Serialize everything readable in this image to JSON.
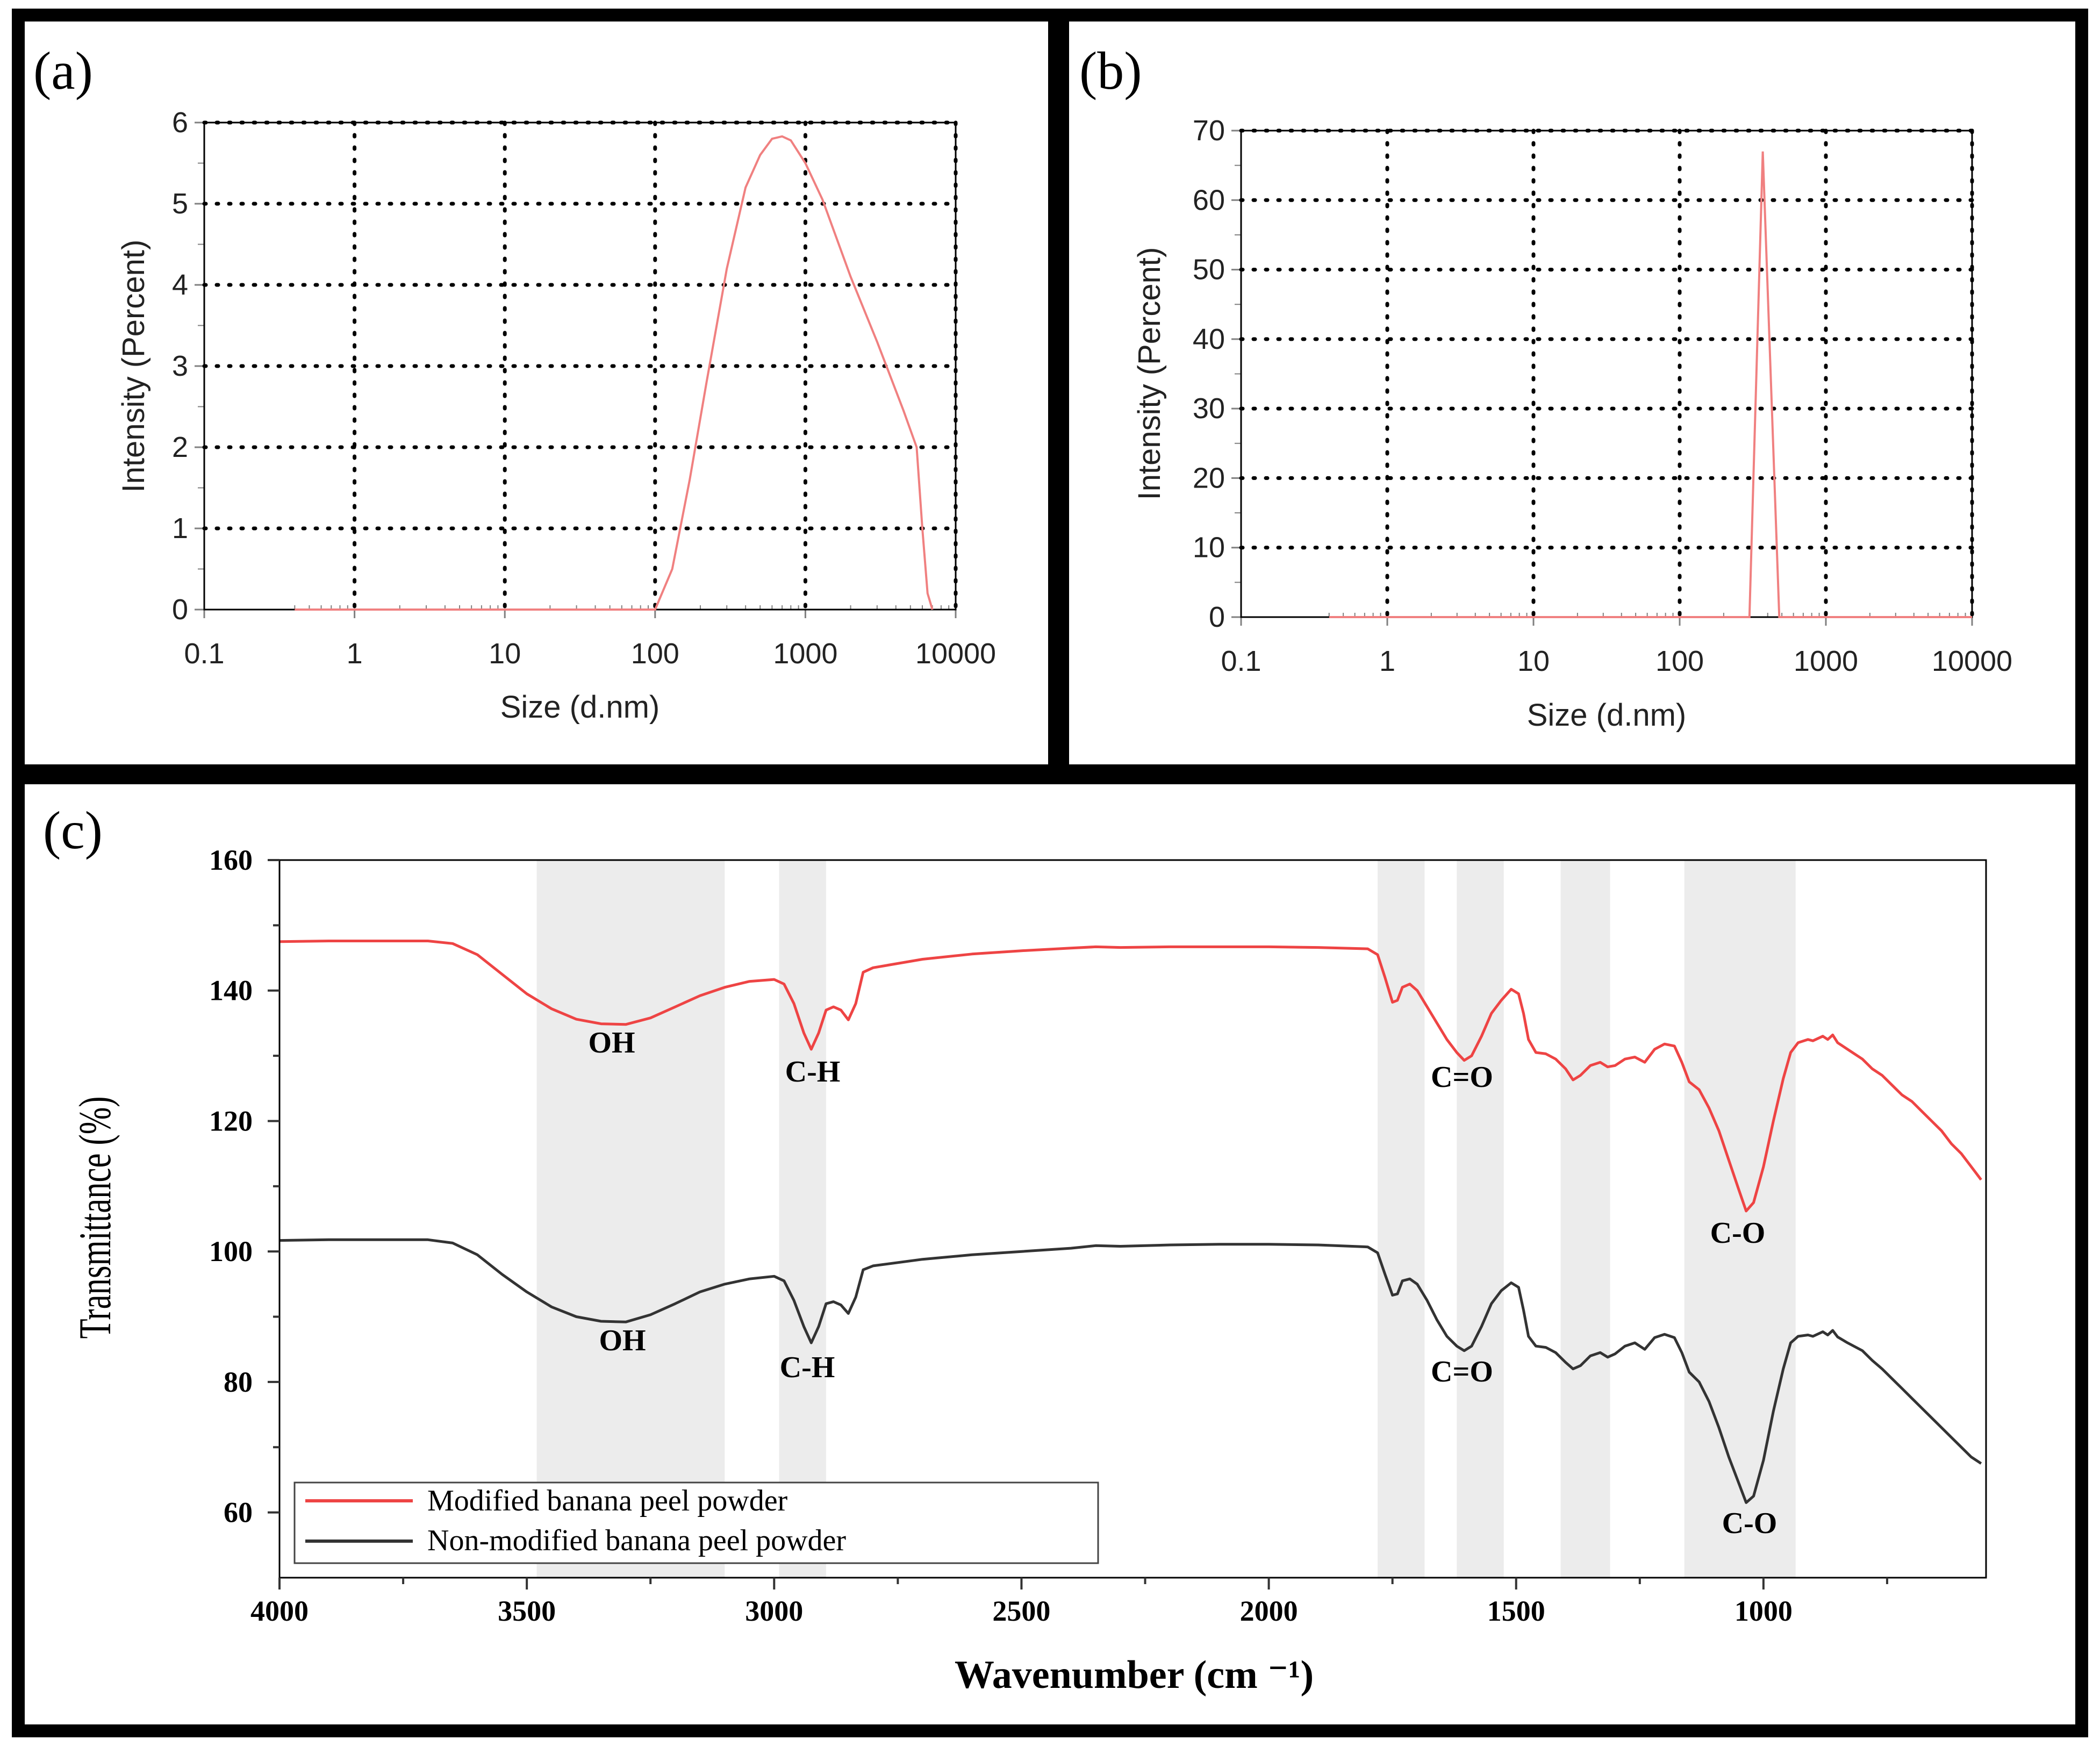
{
  "colors": {
    "modified": "#ee4444",
    "non_modified": "#333333",
    "dls_line": "#f08080",
    "band_shade": "#ececec"
  },
  "chart_data": [
    {
      "panel": "(a)",
      "type": "line",
      "title": "",
      "xlabel": "Size (d.nm)",
      "ylabel": "Intensity (Percent)",
      "xscale": "log",
      "xlim": [
        0.1,
        10000
      ],
      "ylim": [
        0,
        6
      ],
      "xticks": [
        0.1,
        1,
        10,
        100,
        1000,
        10000
      ],
      "xtick_labels": [
        "0.1",
        "1",
        "10",
        "100",
        "1000",
        "10000"
      ],
      "yticks": [
        0,
        1,
        2,
        3,
        4,
        5,
        6
      ],
      "ytick_labels": [
        "0",
        "1",
        "2",
        "3",
        "4",
        "5",
        "6"
      ],
      "grid": true,
      "series": [
        {
          "name": "Intensity",
          "color": "#f08080",
          "x": [
            0.4,
            100,
            130,
            170,
            220,
            300,
            400,
            500,
            600,
            700,
            800,
            1000,
            1300,
            2000,
            3000,
            4500,
            5500,
            6000,
            6500,
            7000
          ],
          "y": [
            0,
            0,
            0.5,
            1.6,
            2.8,
            4.2,
            5.2,
            5.6,
            5.8,
            5.83,
            5.78,
            5.5,
            5.05,
            4.1,
            3.3,
            2.45,
            2.0,
            1.0,
            0.2,
            0
          ]
        }
      ]
    },
    {
      "panel": "(b)",
      "type": "line",
      "title": "",
      "xlabel": "Size (d.nm)",
      "ylabel": "Intensity (Percent)",
      "xscale": "log",
      "xlim": [
        0.1,
        10000
      ],
      "ylim": [
        0,
        70
      ],
      "xticks": [
        0.1,
        1,
        10,
        100,
        1000,
        10000
      ],
      "xtick_labels": [
        "0.1",
        "1",
        "10",
        "100",
        "1000",
        "10000"
      ],
      "yticks": [
        0,
        10,
        20,
        30,
        40,
        50,
        60,
        70
      ],
      "ytick_labels": [
        "0",
        "10",
        "20",
        "30",
        "40",
        "50",
        "60",
        "70"
      ],
      "grid": true,
      "series": [
        {
          "name": "Intensity",
          "color": "#f08080",
          "x": [
            0.4,
            300,
            340,
            370,
            480,
            10000
          ],
          "y": [
            0,
            0,
            40,
            67,
            0,
            0
          ]
        }
      ]
    },
    {
      "panel": "(c)",
      "type": "line",
      "title": "",
      "xlabel": "Wavenumber (cm ⁻¹)",
      "ylabel": "Transmittance (%)",
      "xlim": [
        4000,
        550
      ],
      "ylim": [
        50,
        160
      ],
      "xticks": [
        4000,
        3500,
        3000,
        2500,
        2000,
        1500,
        1000
      ],
      "xtick_labels": [
        "4000",
        "3500",
        "3000",
        "2500",
        "2000",
        "1500",
        "1000"
      ],
      "yticks": [
        60,
        80,
        100,
        120,
        140,
        160
      ],
      "ytick_labels": [
        "60",
        "80",
        "100",
        "120",
        "140",
        "160"
      ],
      "grid": false,
      "legend": {
        "position": "bottom-left",
        "entries": [
          "Modified banana peel powder",
          "Non-modified banana peel powder"
        ]
      },
      "shaded_bands": [
        [
          3480,
          3100
        ],
        [
          2990,
          2895
        ],
        [
          1780,
          1685
        ],
        [
          1620,
          1525
        ],
        [
          1410,
          1310
        ],
        [
          1160,
          935
        ]
      ],
      "series": [
        {
          "name": "Modified banana peel powder",
          "color": "#ee4444",
          "x": [
            4000,
            3900,
            3800,
            3700,
            3650,
            3600,
            3550,
            3500,
            3450,
            3400,
            3350,
            3300,
            3250,
            3200,
            3150,
            3100,
            3050,
            3000,
            2980,
            2960,
            2940,
            2925,
            2910,
            2895,
            2880,
            2865,
            2850,
            2835,
            2820,
            2800,
            2700,
            2600,
            2500,
            2400,
            2350,
            2300,
            2200,
            2100,
            2000,
            1900,
            1800,
            1780,
            1765,
            1750,
            1740,
            1730,
            1715,
            1700,
            1680,
            1660,
            1640,
            1620,
            1605,
            1590,
            1570,
            1550,
            1530,
            1510,
            1495,
            1485,
            1475,
            1460,
            1440,
            1420,
            1400,
            1385,
            1370,
            1350,
            1330,
            1315,
            1300,
            1280,
            1260,
            1240,
            1220,
            1200,
            1180,
            1165,
            1150,
            1130,
            1110,
            1090,
            1070,
            1050,
            1035,
            1020,
            1000,
            980,
            960,
            945,
            930,
            910,
            900,
            880,
            870,
            860,
            850,
            830,
            800,
            780,
            760,
            740,
            720,
            700,
            680,
            660,
            640,
            620,
            600,
            580,
            560
          ],
          "y": [
            147.5,
            147.6,
            147.6,
            147.6,
            147.2,
            145.5,
            142.5,
            139.5,
            137.2,
            135.6,
            134.9,
            134.8,
            135.8,
            137.5,
            139.2,
            140.5,
            141.4,
            141.7,
            141.0,
            138.0,
            133.5,
            131.0,
            133.5,
            137.0,
            137.5,
            137.0,
            135.5,
            138.0,
            142.8,
            143.5,
            144.8,
            145.6,
            146.1,
            146.5,
            146.7,
            146.6,
            146.7,
            146.7,
            146.7,
            146.6,
            146.4,
            145.5,
            142.0,
            138.2,
            138.5,
            140.5,
            141.0,
            140.0,
            137.5,
            135.0,
            132.5,
            130.5,
            129.3,
            130.0,
            133.0,
            136.5,
            138.5,
            140.2,
            139.5,
            136.5,
            132.5,
            130.5,
            130.3,
            129.5,
            128.0,
            126.3,
            127.0,
            128.5,
            129.0,
            128.3,
            128.5,
            129.5,
            129.8,
            129.0,
            131.0,
            131.8,
            131.5,
            129.0,
            126.0,
            124.8,
            122.0,
            118.5,
            114.0,
            109.5,
            106.2,
            107.5,
            113.0,
            120.0,
            126.5,
            130.5,
            132.0,
            132.5,
            132.3,
            133.0,
            132.5,
            133.2,
            132.0,
            131.0,
            129.5,
            128.0,
            127.0,
            125.5,
            124.0,
            123.0,
            121.5,
            120.0,
            118.5,
            116.5,
            115.0,
            113.0,
            111.0
          ]
        },
        {
          "name": "Non-modified banana peel powder",
          "color": "#333333",
          "x": [
            4000,
            3900,
            3800,
            3700,
            3650,
            3600,
            3550,
            3500,
            3450,
            3400,
            3350,
            3300,
            3250,
            3200,
            3150,
            3100,
            3050,
            3000,
            2980,
            2960,
            2940,
            2925,
            2910,
            2895,
            2880,
            2865,
            2850,
            2835,
            2820,
            2800,
            2700,
            2600,
            2500,
            2400,
            2350,
            2300,
            2200,
            2100,
            2000,
            1900,
            1800,
            1780,
            1765,
            1750,
            1740,
            1730,
            1715,
            1700,
            1680,
            1660,
            1640,
            1620,
            1605,
            1590,
            1570,
            1550,
            1530,
            1510,
            1495,
            1485,
            1475,
            1460,
            1440,
            1420,
            1400,
            1385,
            1370,
            1350,
            1330,
            1315,
            1300,
            1280,
            1260,
            1240,
            1220,
            1200,
            1180,
            1165,
            1150,
            1130,
            1110,
            1090,
            1070,
            1050,
            1035,
            1020,
            1000,
            980,
            960,
            945,
            930,
            910,
            900,
            880,
            870,
            860,
            850,
            830,
            800,
            780,
            760,
            740,
            720,
            700,
            680,
            660,
            640,
            620,
            600,
            580,
            560
          ],
          "y": [
            101.7,
            101.8,
            101.8,
            101.8,
            101.3,
            99.5,
            96.5,
            93.8,
            91.5,
            90.0,
            89.3,
            89.2,
            90.3,
            92.0,
            93.8,
            95.0,
            95.8,
            96.2,
            95.5,
            92.5,
            88.5,
            86.0,
            88.5,
            92.0,
            92.3,
            91.8,
            90.5,
            93.0,
            97.2,
            97.8,
            98.8,
            99.5,
            100.0,
            100.5,
            100.9,
            100.8,
            101.0,
            101.1,
            101.1,
            101.0,
            100.7,
            99.8,
            96.5,
            93.3,
            93.5,
            95.5,
            95.8,
            95.0,
            92.5,
            89.5,
            87.0,
            85.5,
            84.8,
            85.5,
            88.5,
            92.0,
            94.0,
            95.2,
            94.5,
            91.0,
            87.0,
            85.5,
            85.3,
            84.5,
            83.0,
            82.0,
            82.5,
            84.0,
            84.5,
            83.8,
            84.3,
            85.5,
            86.0,
            85.0,
            86.8,
            87.3,
            86.8,
            84.5,
            81.5,
            80.0,
            77.0,
            73.0,
            68.5,
            64.5,
            61.5,
            62.5,
            68.0,
            75.5,
            82.0,
            86.0,
            87.0,
            87.2,
            87.0,
            87.7,
            87.2,
            87.9,
            86.9,
            86.0,
            84.8,
            83.3,
            82.0,
            80.5,
            79.0,
            77.5,
            76.0,
            74.5,
            73.0,
            71.5,
            70.0,
            68.5,
            67.5
          ]
        }
      ]
    }
  ],
  "annotations": {
    "panel_a": "(a)",
    "panel_b": "(b)",
    "panel_c": "(c)",
    "peaks_modified": [
      "OH",
      "C-H",
      "C=O",
      "C-O"
    ],
    "peaks_non_modified": [
      "OH",
      "C-H",
      "C=O",
      "C-O"
    ]
  }
}
